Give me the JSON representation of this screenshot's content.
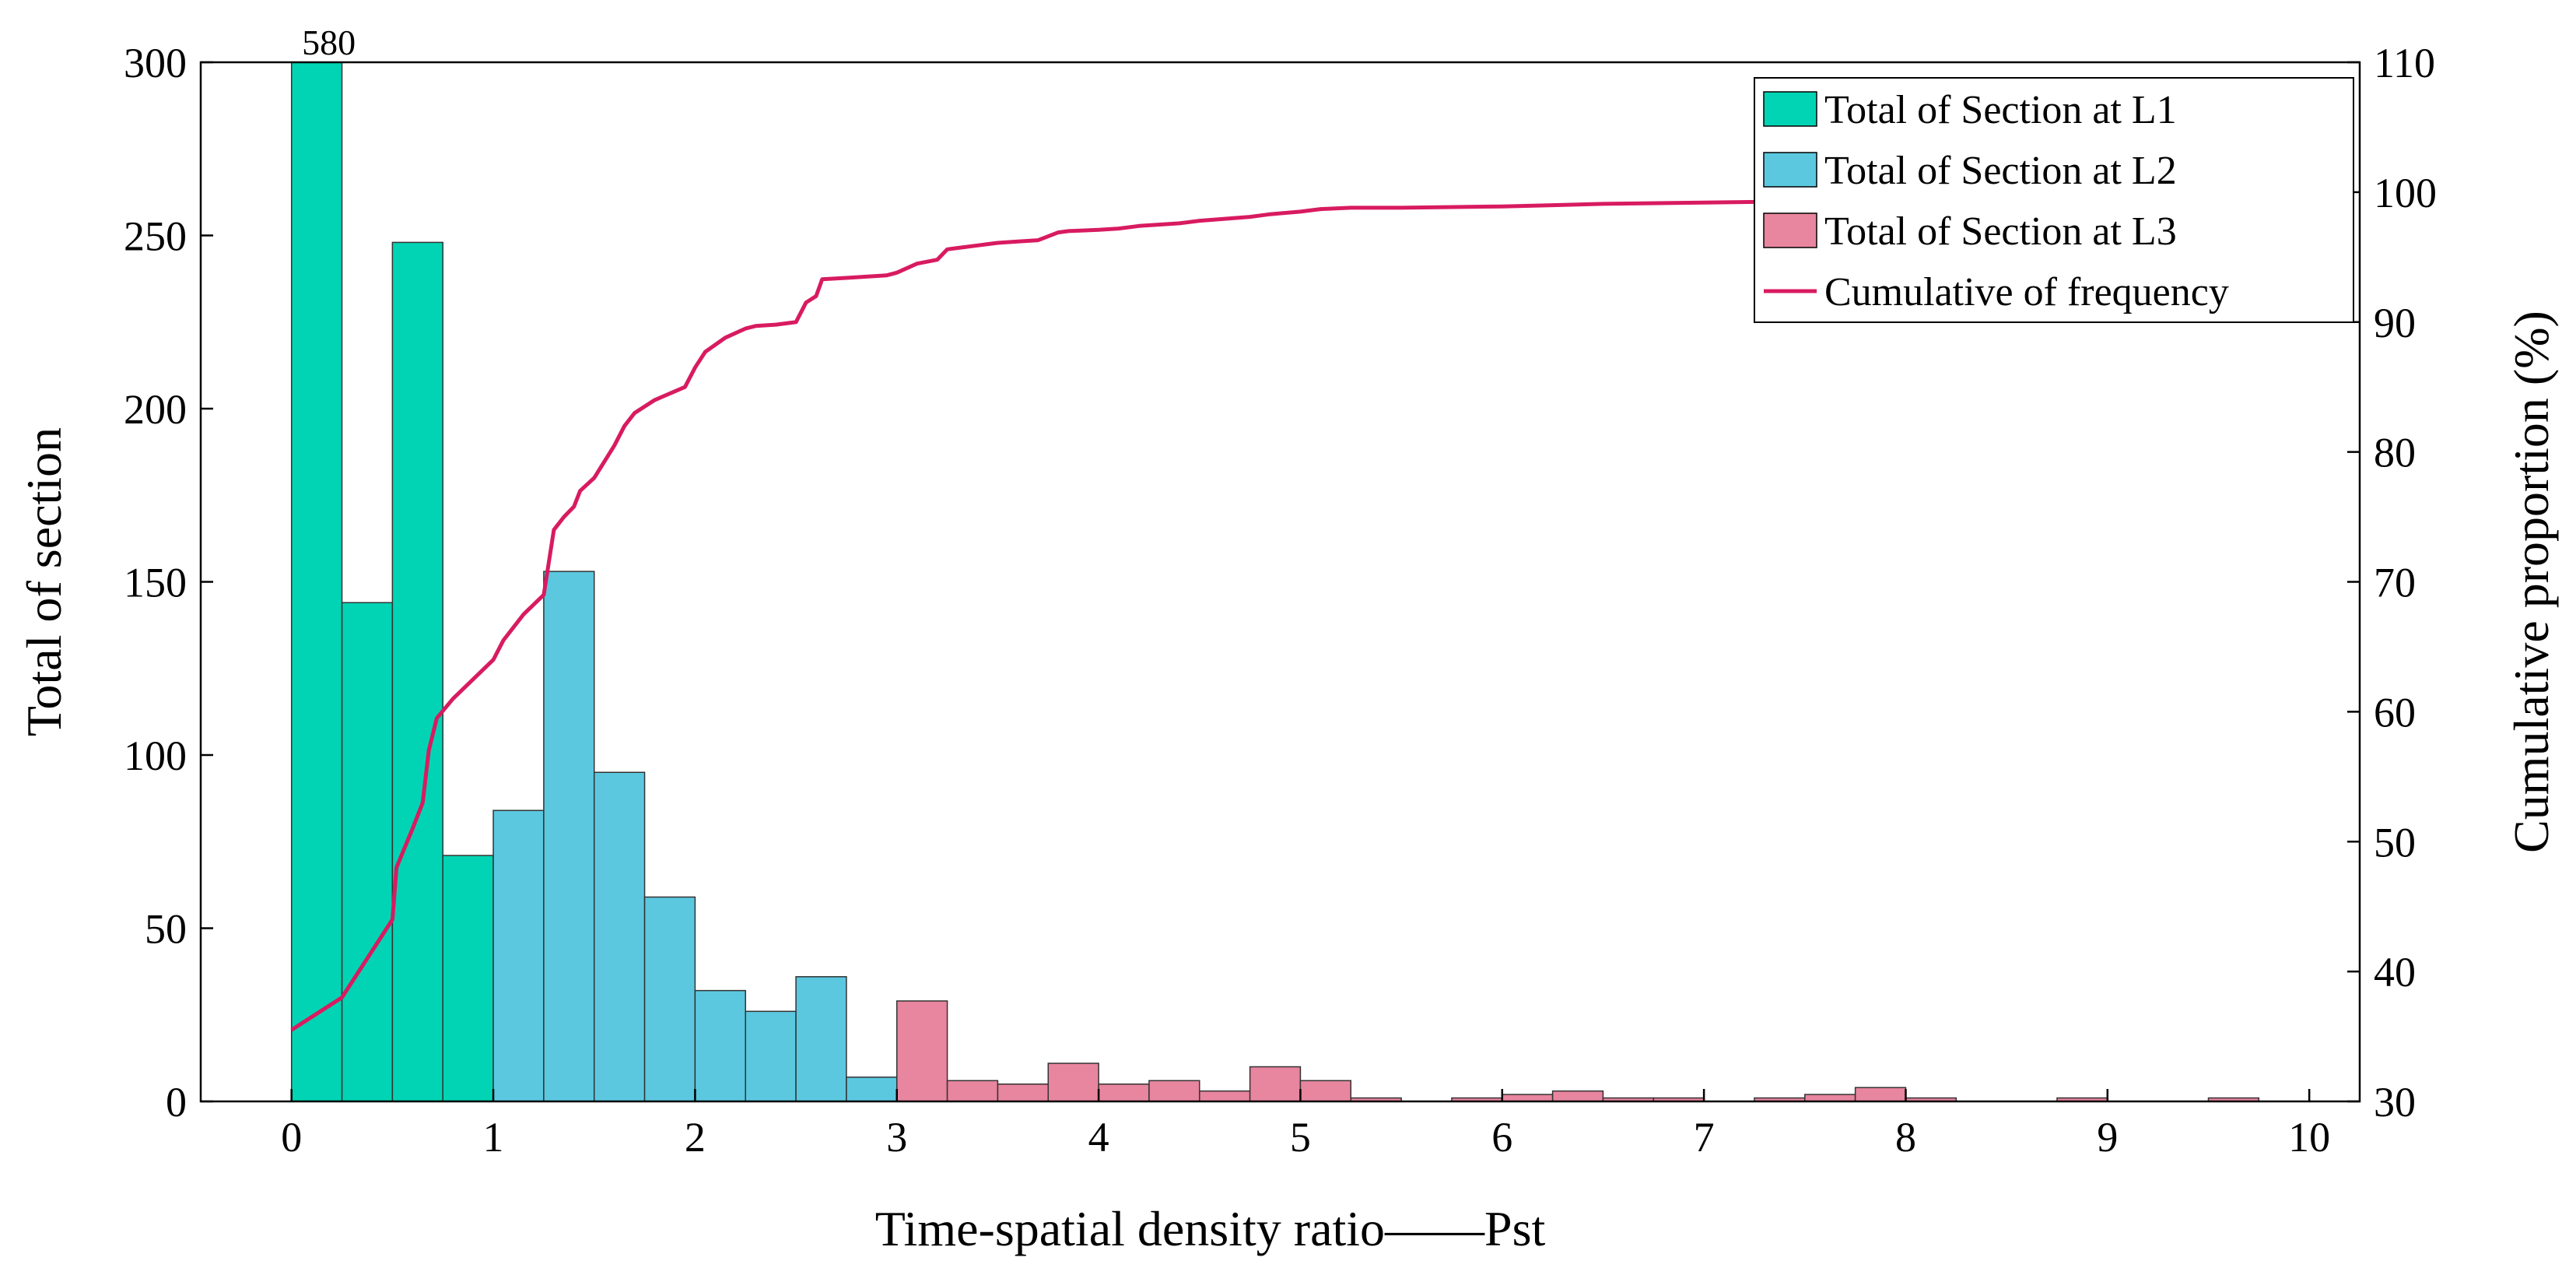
{
  "chart_data": {
    "type": "bar",
    "xlabel": "Time-spatial density ratio——Pst",
    "ylabel": "Total of section",
    "y2label": "Cumulative proportion (%)",
    "xlim": [
      -0.45,
      10.25
    ],
    "ylim": [
      0,
      300
    ],
    "y2lim": [
      30,
      110
    ],
    "x_ticks": [
      "0",
      "1",
      "2",
      "3",
      "4",
      "5",
      "6",
      "7",
      "8",
      "9",
      "10"
    ],
    "y_ticks": [
      "0",
      "50",
      "100",
      "150",
      "200",
      "250",
      "300"
    ],
    "y2_ticks": [
      "30",
      "40",
      "50",
      "60",
      "70",
      "80",
      "90",
      "100",
      "110"
    ],
    "bin_width": 0.25,
    "legend_position": "top-right",
    "annotations": [
      {
        "text": "580",
        "x": 0.125
      }
    ],
    "series": [
      {
        "name": "Total of Section at L1",
        "color": "#00D4B4",
        "bins": [
          [
            0,
            580
          ],
          [
            0.25,
            144
          ],
          [
            0.5,
            248
          ],
          [
            0.75,
            71
          ]
        ]
      },
      {
        "name": "Total of Section at L2",
        "color": "#5BC8E0",
        "bins": [
          [
            1.0,
            84
          ],
          [
            1.25,
            153
          ],
          [
            1.5,
            95
          ],
          [
            1.75,
            59
          ],
          [
            2.0,
            32
          ],
          [
            2.25,
            26
          ],
          [
            2.5,
            36
          ],
          [
            2.75,
            7
          ]
        ]
      },
      {
        "name": "Total of Section at L3",
        "color": "#E8859F",
        "bins": [
          [
            3.0,
            29
          ],
          [
            3.25,
            6
          ],
          [
            3.5,
            5
          ],
          [
            3.75,
            11
          ],
          [
            4.0,
            5
          ],
          [
            4.25,
            6
          ],
          [
            4.5,
            3
          ],
          [
            4.75,
            10
          ],
          [
            5.0,
            6
          ],
          [
            5.25,
            1
          ],
          [
            5.75,
            1
          ],
          [
            6.0,
            2
          ],
          [
            6.25,
            3
          ],
          [
            6.5,
            1
          ],
          [
            6.75,
            1
          ],
          [
            7.25,
            1
          ],
          [
            7.5,
            2
          ],
          [
            7.75,
            4
          ],
          [
            8.0,
            1
          ],
          [
            8.75,
            1
          ],
          [
            9.5,
            1
          ]
        ]
      }
    ],
    "cumulative": {
      "name": "Cumulative of frequency",
      "color": "#D81B60",
      "points": [
        [
          0,
          35.5
        ],
        [
          0.25,
          38
        ],
        [
          0.5,
          44
        ],
        [
          0.52,
          48
        ],
        [
          0.6,
          51
        ],
        [
          0.65,
          53
        ],
        [
          0.68,
          57
        ],
        [
          0.72,
          59.5
        ],
        [
          0.8,
          61
        ],
        [
          0.9,
          62.5
        ],
        [
          1.0,
          64
        ],
        [
          1.05,
          65.5
        ],
        [
          1.15,
          67.5
        ],
        [
          1.25,
          69
        ],
        [
          1.28,
          72
        ],
        [
          1.3,
          74
        ],
        [
          1.35,
          75
        ],
        [
          1.4,
          75.8
        ],
        [
          1.43,
          77
        ],
        [
          1.5,
          78
        ],
        [
          1.6,
          80.5
        ],
        [
          1.65,
          82
        ],
        [
          1.7,
          83
        ],
        [
          1.8,
          84
        ],
        [
          1.95,
          85
        ],
        [
          2.0,
          86.5
        ],
        [
          2.05,
          87.7
        ],
        [
          2.15,
          88.8
        ],
        [
          2.25,
          89.5
        ],
        [
          2.3,
          89.7
        ],
        [
          2.4,
          89.8
        ],
        [
          2.5,
          90
        ],
        [
          2.55,
          91.5
        ],
        [
          2.6,
          92
        ],
        [
          2.63,
          93.3
        ],
        [
          2.75,
          93.4
        ],
        [
          2.95,
          93.6
        ],
        [
          3.0,
          93.8
        ],
        [
          3.1,
          94.5
        ],
        [
          3.2,
          94.8
        ],
        [
          3.25,
          95.6
        ],
        [
          3.3,
          95.7
        ],
        [
          3.4,
          95.9
        ],
        [
          3.5,
          96.1
        ],
        [
          3.6,
          96.2
        ],
        [
          3.7,
          96.3
        ],
        [
          3.75,
          96.6
        ],
        [
          3.8,
          96.9
        ],
        [
          3.85,
          97
        ],
        [
          4.0,
          97.1
        ],
        [
          4.1,
          97.2
        ],
        [
          4.2,
          97.4
        ],
        [
          4.4,
          97.6
        ],
        [
          4.5,
          97.8
        ],
        [
          4.75,
          98.1
        ],
        [
          4.85,
          98.3
        ],
        [
          5.0,
          98.5
        ],
        [
          5.1,
          98.7
        ],
        [
          5.25,
          98.8
        ],
        [
          5.5,
          98.8
        ],
        [
          6.0,
          98.9
        ],
        [
          6.25,
          99.0
        ],
        [
          6.5,
          99.1
        ],
        [
          7.0,
          99.2
        ],
        [
          7.5,
          99.3
        ],
        [
          8.0,
          99.5
        ],
        [
          8.5,
          99.6
        ],
        [
          9.0,
          99.8
        ],
        [
          9.5,
          99.9
        ],
        [
          9.75,
          100
        ]
      ]
    }
  }
}
